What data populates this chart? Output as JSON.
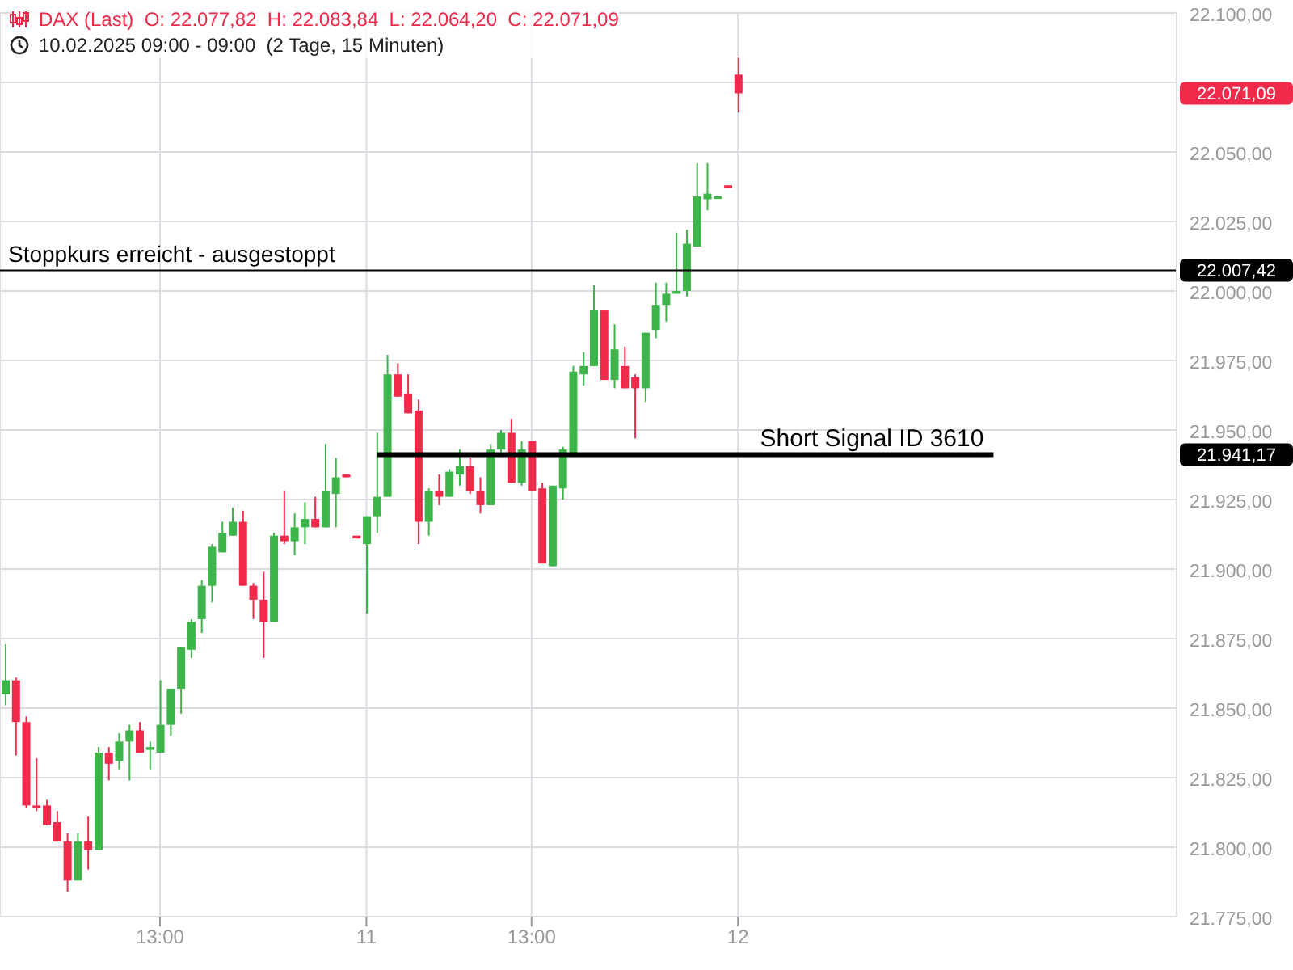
{
  "chart_data": {
    "type": "candlestick",
    "title": "DAX (Last)  O: 22.077,82  H: 22.083,84  L: 22.064,20  C: 22.071,09",
    "subtitle": "10.02.2025 09:00 - 09:00  (2 Tage, 15 Minuten)",
    "categories": [
      null,
      null,
      null,
      null,
      null,
      null,
      null,
      null,
      null,
      null,
      null,
      null,
      null,
      null,
      null,
      "13:00",
      null,
      null,
      null,
      null,
      null,
      null,
      null,
      null,
      null,
      null,
      null,
      null,
      null,
      null,
      null,
      null,
      null,
      null,
      null,
      "11",
      null,
      null,
      null,
      null,
      null,
      null,
      null,
      null,
      null,
      null,
      null,
      null,
      null,
      null,
      null,
      "13:00",
      null,
      null,
      null,
      null,
      null,
      null,
      null,
      null,
      null,
      null,
      null,
      null,
      null,
      null,
      null,
      null,
      null,
      null,
      null,
      "12",
      null,
      null,
      null,
      null,
      null,
      null,
      null,
      null,
      null,
      null,
      null,
      null,
      null,
      null,
      null,
      null,
      null,
      null,
      null,
      null,
      null,
      null,
      null,
      null,
      null,
      null,
      null,
      null,
      null,
      null,
      null,
      null,
      null,
      null,
      null,
      null,
      null,
      null,
      null,
      null,
      null,
      null
    ],
    "ohlc": [
      [
        21855,
        21873,
        21851,
        21860
      ],
      [
        21860,
        21861,
        21833,
        21845
      ],
      [
        21845,
        21847,
        21814,
        21815
      ],
      [
        21815,
        21832,
        21813,
        21814
      ],
      [
        21815,
        21817,
        21808,
        21808
      ],
      [
        21809,
        21813,
        21802,
        21802
      ],
      [
        21802,
        21805,
        21784,
        21788
      ],
      [
        21788,
        21805,
        21788,
        21802
      ],
      [
        21802,
        21811,
        21792,
        21799
      ],
      [
        21799,
        21836,
        21799,
        21834
      ],
      [
        21834,
        21836,
        21824,
        21830
      ],
      [
        21831,
        21841,
        21828,
        21838
      ],
      [
        21838,
        21844,
        21824,
        21842
      ],
      [
        21842,
        21845,
        21834,
        21834
      ],
      [
        21835,
        21838,
        21828,
        21836
      ],
      [
        21834,
        21860,
        21834,
        21844
      ],
      [
        21844,
        21857,
        21840,
        21857
      ],
      [
        21857,
        21872,
        21848,
        21872
      ],
      [
        21871,
        21882,
        21868,
        21881
      ],
      [
        21882,
        21896,
        21877,
        21894
      ],
      [
        21894,
        21909,
        21888,
        21908
      ],
      [
        21906,
        21917,
        21906,
        21913
      ],
      [
        21912,
        21922,
        21912,
        21917
      ],
      [
        21917,
        21921,
        21894,
        21894
      ],
      [
        21894,
        21895,
        21882,
        21889
      ],
      [
        21889,
        21899,
        21868,
        21881
      ],
      [
        21881,
        21913,
        21881,
        21912
      ],
      [
        21912,
        21928,
        21909,
        21910
      ],
      [
        21910,
        21920,
        21905,
        21915
      ],
      [
        21915,
        21924,
        21909,
        21918
      ],
      [
        21918,
        21926,
        21915,
        21915
      ],
      [
        21915,
        21945,
        21915,
        21928
      ],
      [
        21927,
        21940,
        21915,
        21933
      ],
      [
        21934,
        21934,
        21933,
        21933
      ],
      [
        21912,
        21912,
        21911,
        21911
      ],
      [
        21909,
        21919,
        21884,
        21919
      ],
      [
        21919,
        21949,
        21913,
        21926
      ],
      [
        21926,
        21977,
        21926,
        21970
      ],
      [
        21970,
        21974,
        21962,
        21962
      ],
      [
        21963,
        21970,
        21956,
        21956
      ],
      [
        21957,
        21961,
        21909,
        21917
      ],
      [
        21917,
        21929,
        21912,
        21928
      ],
      [
        21928,
        21934,
        21923,
        21926
      ],
      [
        21926,
        21936,
        21926,
        21935
      ],
      [
        21934,
        21943,
        21930,
        21937
      ],
      [
        21937,
        21940,
        21927,
        21928
      ],
      [
        21928,
        21933,
        21920,
        21923
      ],
      [
        21923,
        21945,
        21923,
        21943
      ],
      [
        21943,
        21950,
        21942,
        21949
      ],
      [
        21949,
        21954,
        21931,
        21931
      ],
      [
        21931,
        21946,
        21930,
        21943
      ],
      [
        21946,
        21946,
        21928,
        21928
      ],
      [
        21929,
        21931,
        21902,
        21902
      ],
      [
        21901,
        21930,
        21901,
        21930
      ],
      [
        21929,
        21944,
        21925,
        21943
      ],
      [
        21941,
        21973,
        21941,
        21971
      ],
      [
        21970,
        21978,
        21966,
        21973
      ],
      [
        21973,
        22002,
        21973,
        21993
      ],
      [
        21993,
        21993,
        21968,
        21968
      ],
      [
        21968,
        21988,
        21965,
        21979
      ],
      [
        21973,
        21980,
        21965,
        21965
      ],
      [
        21969,
        21970,
        21947,
        21965
      ],
      [
        21965,
        21985,
        21960,
        21985
      ],
      [
        21986,
        22003,
        21983,
        21995
      ],
      [
        21995,
        22003,
        21989,
        21999
      ],
      [
        21999,
        22021,
        21999,
        22000
      ],
      [
        22000,
        22022,
        21998,
        22017
      ],
      [
        22016,
        22046,
        22016,
        22034
      ],
      [
        22033,
        22046,
        22029,
        22035
      ],
      [
        22034,
        22034,
        22034,
        22034
      ],
      [
        22038,
        22038,
        22038,
        22038
      ],
      [
        22077.82,
        22083.84,
        22064.2,
        22071.09
      ],
      null,
      null,
      null,
      null,
      null,
      null,
      null,
      null,
      null,
      null,
      null,
      null,
      null,
      null,
      null,
      null,
      null,
      null,
      null,
      null,
      null,
      null,
      null,
      null,
      null,
      null,
      null,
      null,
      null,
      null,
      null,
      null,
      null,
      null,
      null,
      null,
      null,
      null,
      null,
      null,
      null,
      null
    ],
    "colors": [
      "#3db54a",
      "#f02a4b",
      "#f02a4b",
      "#f02a4b",
      "#f02a4b",
      "#f02a4b",
      "#f02a4b",
      "#3db54a",
      "#f02a4b",
      "#3db54a",
      "#f02a4b",
      "#3db54a",
      "#3db54a",
      "#f02a4b",
      "#3db54a",
      "#3db54a",
      "#3db54a",
      "#3db54a",
      "#3db54a",
      "#3db54a",
      "#3db54a",
      "#3db54a",
      "#3db54a",
      "#f02a4b",
      "#f02a4b",
      "#f02a4b",
      "#3db54a",
      "#f02a4b",
      "#3db54a",
      "#3db54a",
      "#f02a4b",
      "#3db54a",
      "#3db54a",
      "#f02a4b",
      "#f02a4b",
      "#3db54a",
      "#3db54a",
      "#3db54a",
      "#f02a4b",
      "#f02a4b",
      "#f02a4b",
      "#3db54a",
      "#f02a4b",
      "#3db54a",
      "#3db54a",
      "#f02a4b",
      "#f02a4b",
      "#3db54a",
      "#3db54a",
      "#f02a4b",
      "#3db54a",
      "#f02a4b",
      "#f02a4b",
      "#3db54a",
      "#3db54a",
      "#3db54a",
      "#3db54a",
      "#3db54a",
      "#f02a4b",
      "#3db54a",
      "#f02a4b",
      "#f02a4b",
      "#3db54a",
      "#3db54a",
      "#3db54a",
      "#3db54a",
      "#3db54a",
      "#3db54a",
      "#3db54a",
      "#3db54a",
      "#f02a4b",
      "#f02a4b",
      null,
      null,
      null,
      null,
      null,
      null,
      null,
      null,
      null,
      null,
      null,
      null,
      null,
      null,
      null,
      null,
      null,
      null,
      null,
      null,
      null,
      null,
      null,
      null,
      null,
      null,
      null,
      null,
      null,
      null,
      null,
      null,
      null,
      null,
      null,
      null,
      null,
      null,
      null,
      null,
      null,
      null
    ],
    "ylim": [
      21775,
      22100
    ],
    "yticks": [
      {
        "value": 21775,
        "label": "21.775,00"
      },
      {
        "value": 21800,
        "label": "21.800,00"
      },
      {
        "value": 21825,
        "label": "21.825,00"
      },
      {
        "value": 21850,
        "label": "21.850,00"
      },
      {
        "value": 21875,
        "label": "21.875,00"
      },
      {
        "value": 21900,
        "label": "21.900,00"
      },
      {
        "value": 21925,
        "label": "21.925,00"
      },
      {
        "value": 21950,
        "label": "21.950,00"
      },
      {
        "value": 21975,
        "label": "21.975,00"
      },
      {
        "value": 22000,
        "label": "22.000,00"
      },
      {
        "value": 22025,
        "label": "22.025,00"
      },
      {
        "value": 22050,
        "label": "22.050,00"
      },
      {
        "value": 22075,
        "label": null
      },
      {
        "value": 22100,
        "label": "22.100,00"
      }
    ],
    "grid": true,
    "ref_lines": [
      {
        "axis": "y",
        "value": 22007.42,
        "label": "Stoppkurs erreicht - ausgestoppt",
        "color": "#000000"
      },
      {
        "axis": "y",
        "value": 21941.17,
        "label": "Short Signal  ID 3610",
        "color": "#000000"
      }
    ],
    "annotations": [
      "22.071,09",
      "22.007,42",
      "21.941,17"
    ]
  }
}
